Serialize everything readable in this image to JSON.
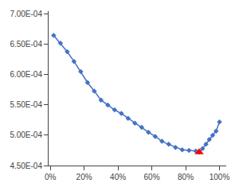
{
  "chart_data": {
    "type": "line",
    "x": [
      0.02,
      0.06,
      0.1,
      0.14,
      0.18,
      0.22,
      0.26,
      0.3,
      0.34,
      0.38,
      0.42,
      0.46,
      0.5,
      0.54,
      0.58,
      0.62,
      0.66,
      0.7,
      0.74,
      0.78,
      0.82,
      0.86,
      0.88,
      0.9,
      0.92,
      0.94,
      0.96,
      0.98,
      1.0
    ],
    "series": [
      {
        "type": "line",
        "color": "#4472C4",
        "marker": "diamond",
        "values": [
          0.000665,
          0.000652,
          0.000638,
          0.000622,
          0.000605,
          0.000587,
          0.000573,
          0.000558,
          0.00055,
          0.000542,
          0.000536,
          0.000528,
          0.00052,
          0.000513,
          0.000505,
          0.000498,
          0.00049,
          0.000485,
          0.00048,
          0.000476,
          0.000475,
          0.000474,
          0.000472,
          0.000478,
          0.000485,
          0.000493,
          0.0005,
          0.000507,
          0.000522
        ]
      },
      {
        "type": "scatter",
        "color": "#FF0000",
        "marker": "triangle-up",
        "values": [
          null,
          null,
          null,
          null,
          null,
          null,
          null,
          null,
          null,
          null,
          null,
          null,
          null,
          null,
          null,
          null,
          null,
          null,
          null,
          null,
          null,
          null,
          0.000472,
          null,
          null,
          null,
          null,
          null,
          null
        ]
      }
    ],
    "xlim": [
      -0.01,
      1.04
    ],
    "ylim": [
      0.00045,
      0.000705
    ],
    "xticks": [
      {
        "value": 0,
        "label": "0%"
      },
      {
        "value": 0.2,
        "label": "20%"
      },
      {
        "value": 0.4,
        "label": "40%"
      },
      {
        "value": 0.6,
        "label": "60%"
      },
      {
        "value": 0.8,
        "label": "80%"
      },
      {
        "value": 1.0,
        "label": "100%"
      }
    ],
    "yticks": [
      {
        "value": 0.00045,
        "label": "4.50E-04"
      },
      {
        "value": 0.0005,
        "label": "5.00E-04"
      },
      {
        "value": 0.00055,
        "label": "5.50E-04"
      },
      {
        "value": 0.0006,
        "label": "6.00E-04"
      },
      {
        "value": 0.00065,
        "label": "6.50E-04"
      },
      {
        "value": 0.0007,
        "label": "7.00E-04"
      }
    ],
    "grid": false
  }
}
